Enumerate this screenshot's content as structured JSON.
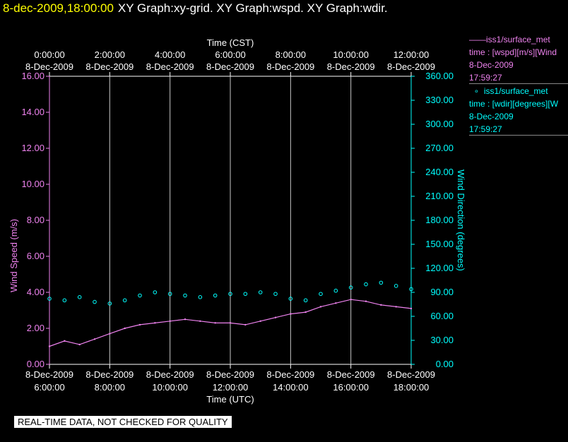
{
  "header": {
    "timestamp": "8-dec-2009,18:00:00",
    "graph_titles": "XY Graph:xy-grid.  XY Graph:wspd.  XY Graph:wdir."
  },
  "legend": {
    "wspd": {
      "name": "iss1/surface_met",
      "line2": "time : [wspd][m/s][Wind",
      "date": "8-Dec-2009",
      "time": "17:59:27",
      "color": "#ee82ee"
    },
    "wdir": {
      "name": "iss1/surface_met",
      "line2": "time : [wdir][degrees][W",
      "date": "8-Dec-2009",
      "time": "17:59:27",
      "color": "#00ffff"
    }
  },
  "disclaimer": "REAL-TIME DATA, NOT CHECKED FOR QUALITY",
  "chart_data": {
    "type": "line",
    "top_axis": {
      "label": "Time (CST)",
      "ticks": [
        {
          "time": "0:00:00",
          "date": "8-Dec-2009"
        },
        {
          "time": "2:00:00",
          "date": "8-Dec-2009"
        },
        {
          "time": "4:00:00",
          "date": "8-Dec-2009"
        },
        {
          "time": "6:00:00",
          "date": "8-Dec-2009"
        },
        {
          "time": "8:00:00",
          "date": "8-Dec-2009"
        },
        {
          "time": "10:00:00",
          "date": "8-Dec-2009"
        },
        {
          "time": "12:00:00",
          "date": "8-Dec-2009"
        }
      ]
    },
    "bottom_axis": {
      "label": "Time (UTC)",
      "ticks": [
        {
          "date": "8-Dec-2009",
          "time": "6:00:00"
        },
        {
          "date": "8-Dec-2009",
          "time": "8:00:00"
        },
        {
          "date": "8-Dec-2009",
          "time": "10:00:00"
        },
        {
          "date": "8-Dec-2009",
          "time": "12:00:00"
        },
        {
          "date": "8-Dec-2009",
          "time": "14:00:00"
        },
        {
          "date": "8-Dec-2009",
          "time": "16:00:00"
        },
        {
          "date": "8-Dec-2009",
          "time": "18:00:00"
        }
      ],
      "range_utc_hours": [
        6,
        18
      ]
    },
    "left_axis": {
      "label": "Wind Speed (m/s)",
      "ylim": [
        0,
        16
      ],
      "ticks": [
        "0.00",
        "2.00",
        "4.00",
        "6.00",
        "8.00",
        "10.00",
        "12.00",
        "14.00",
        "16.00"
      ],
      "color": "#ee82ee"
    },
    "right_axis": {
      "label": "Wind Direction (degrees)",
      "ylim": [
        0,
        360
      ],
      "ticks": [
        "0.00",
        "30.00",
        "60.00",
        "90.00",
        "120.00",
        "150.00",
        "180.00",
        "210.00",
        "240.00",
        "270.00",
        "300.00",
        "330.00",
        "360.00"
      ],
      "color": "#00ffff"
    },
    "grid": "vertical",
    "series": [
      {
        "name": "iss1/surface_met",
        "axis": "left",
        "style": "line",
        "color": "#ee82ee",
        "x_hours_utc": [
          6.0,
          6.5,
          7.0,
          7.5,
          8.0,
          8.5,
          9.0,
          9.5,
          10.0,
          10.5,
          11.0,
          11.5,
          12.0,
          12.5,
          13.0,
          13.5,
          14.0,
          14.5,
          15.0,
          15.5,
          16.0,
          16.5,
          17.0,
          17.5,
          18.0
        ],
        "values": [
          1.0,
          1.3,
          1.1,
          1.4,
          1.7,
          2.0,
          2.2,
          2.3,
          2.4,
          2.5,
          2.4,
          2.3,
          2.3,
          2.2,
          2.4,
          2.6,
          2.8,
          2.9,
          3.2,
          3.4,
          3.6,
          3.5,
          3.3,
          3.2,
          3.1
        ]
      },
      {
        "name": "iss1/surface_met",
        "axis": "right",
        "style": "scatter",
        "color": "#00ffff",
        "x_hours_utc": [
          6.0,
          6.5,
          7.0,
          7.5,
          8.0,
          8.5,
          9.0,
          9.5,
          10.0,
          10.5,
          11.0,
          11.5,
          12.0,
          12.5,
          13.0,
          13.5,
          14.0,
          14.5,
          15.0,
          15.5,
          16.0,
          16.5,
          17.0,
          17.5,
          18.0
        ],
        "values": [
          82,
          80,
          84,
          78,
          76,
          80,
          86,
          90,
          88,
          86,
          84,
          86,
          88,
          88,
          90,
          88,
          82,
          80,
          88,
          92,
          96,
          100,
          102,
          98,
          94
        ]
      }
    ]
  }
}
